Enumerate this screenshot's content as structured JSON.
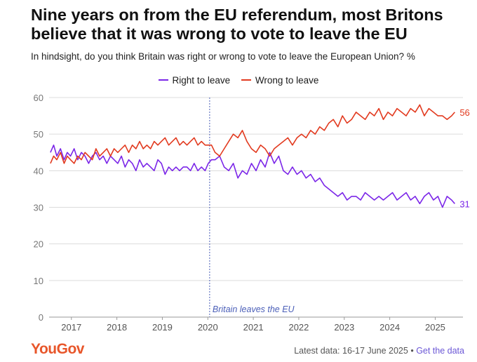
{
  "header": {
    "title": "Nine years on from the EU referendum, most Britons believe that it was wrong to vote to leave the EU",
    "subtitle": "In hindsight, do you think Britain was right or wrong to vote to leave the European Union? %"
  },
  "footer": {
    "brand": "YouGov",
    "latest": "Latest data: 16-17 June 2025",
    "separator": "•",
    "link": "Get the data"
  },
  "colors": {
    "right": "#7b26e8",
    "wrong": "#e23a1f",
    "brand": "#e8562a",
    "grid": "#dcdcdc",
    "axis": "#777777"
  },
  "chart_data": {
    "type": "line",
    "title": "Nine years on from the EU referendum, most Britons believe that it was wrong to vote to leave the EU",
    "subtitle": "In hindsight, do you think Britain was right or wrong to vote to leave the European Union? %",
    "ylim": [
      0,
      60
    ],
    "yticks": [
      0,
      10,
      20,
      30,
      40,
      50,
      60
    ],
    "xlim": [
      2016.55,
      2025.65
    ],
    "xticks": [
      "2017",
      "2018",
      "2019",
      "2020",
      "2021",
      "2022",
      "2023",
      "2024",
      "2025"
    ],
    "legend": "top-center",
    "grid": true,
    "annotation": {
      "x": 2020.08,
      "label": "Britain leaves the EU"
    },
    "series": [
      {
        "name": "Right to leave",
        "color": "#7b26e8",
        "end_label": "31",
        "x": [
          2016.58,
          2016.65,
          2016.72,
          2016.8,
          2016.88,
          2016.95,
          2017.02,
          2017.1,
          2017.18,
          2017.26,
          2017.34,
          2017.42,
          2017.5,
          2017.58,
          2017.66,
          2017.74,
          2017.82,
          2017.9,
          2017.98,
          2018.06,
          2018.14,
          2018.22,
          2018.3,
          2018.38,
          2018.46,
          2018.54,
          2018.62,
          2018.7,
          2018.78,
          2018.86,
          2018.94,
          2019.02,
          2019.1,
          2019.18,
          2019.26,
          2019.34,
          2019.42,
          2019.5,
          2019.58,
          2019.66,
          2019.74,
          2019.82,
          2019.9,
          2019.98,
          2020.05,
          2020.12,
          2020.2,
          2020.3,
          2020.4,
          2020.5,
          2020.6,
          2020.7,
          2020.8,
          2020.9,
          2021.0,
          2021.1,
          2021.2,
          2021.3,
          2021.4,
          2021.5,
          2021.6,
          2021.7,
          2021.8,
          2021.9,
          2022.0,
          2022.1,
          2022.2,
          2022.3,
          2022.4,
          2022.5,
          2022.6,
          2022.7,
          2022.8,
          2022.9,
          2023.0,
          2023.1,
          2023.2,
          2023.3,
          2023.4,
          2023.5,
          2023.6,
          2023.7,
          2023.8,
          2023.9,
          2024.0,
          2024.1,
          2024.2,
          2024.3,
          2024.4,
          2024.5,
          2024.6,
          2024.7,
          2024.8,
          2024.9,
          2025.0,
          2025.1,
          2025.2,
          2025.3,
          2025.4,
          2025.47
        ],
        "values": [
          45,
          47,
          44,
          46,
          43,
          45,
          44,
          46,
          43,
          45,
          44,
          42,
          44,
          45,
          43,
          44,
          42,
          44,
          43,
          42,
          44,
          41,
          43,
          42,
          40,
          43,
          41,
          42,
          41,
          40,
          43,
          42,
          39,
          41,
          40,
          41,
          40,
          41,
          41,
          40,
          42,
          40,
          41,
          40,
          42,
          43,
          43,
          44,
          41,
          40,
          42,
          38,
          40,
          39,
          42,
          40,
          43,
          41,
          45,
          42,
          44,
          40,
          39,
          41,
          39,
          40,
          38,
          39,
          37,
          38,
          36,
          35,
          34,
          33,
          34,
          32,
          33,
          33,
          32,
          34,
          33,
          32,
          33,
          32,
          33,
          34,
          32,
          33,
          34,
          32,
          33,
          31,
          33,
          34,
          32,
          33,
          30,
          33,
          32,
          31
        ]
      },
      {
        "name": "Wrong to leave",
        "color": "#e23a1f",
        "end_label": "56",
        "x": [
          2016.58,
          2016.65,
          2016.72,
          2016.8,
          2016.88,
          2016.95,
          2017.02,
          2017.1,
          2017.18,
          2017.26,
          2017.34,
          2017.42,
          2017.5,
          2017.58,
          2017.66,
          2017.74,
          2017.82,
          2017.9,
          2017.98,
          2018.06,
          2018.14,
          2018.22,
          2018.3,
          2018.38,
          2018.46,
          2018.54,
          2018.62,
          2018.7,
          2018.78,
          2018.86,
          2018.94,
          2019.02,
          2019.1,
          2019.18,
          2019.26,
          2019.34,
          2019.42,
          2019.5,
          2019.58,
          2019.66,
          2019.74,
          2019.82,
          2019.9,
          2019.98,
          2020.05,
          2020.12,
          2020.2,
          2020.3,
          2020.4,
          2020.5,
          2020.6,
          2020.7,
          2020.8,
          2020.9,
          2021.0,
          2021.1,
          2021.2,
          2021.3,
          2021.4,
          2021.5,
          2021.6,
          2021.7,
          2021.8,
          2021.9,
          2022.0,
          2022.1,
          2022.2,
          2022.3,
          2022.4,
          2022.5,
          2022.6,
          2022.7,
          2022.8,
          2022.9,
          2023.0,
          2023.1,
          2023.2,
          2023.3,
          2023.4,
          2023.5,
          2023.6,
          2023.7,
          2023.8,
          2023.9,
          2024.0,
          2024.1,
          2024.2,
          2024.3,
          2024.4,
          2024.5,
          2024.6,
          2024.7,
          2024.8,
          2024.9,
          2025.0,
          2025.1,
          2025.2,
          2025.3,
          2025.4,
          2025.47
        ],
        "values": [
          42,
          44,
          43,
          45,
          42,
          44,
          43,
          42,
          44,
          43,
          45,
          44,
          43,
          46,
          44,
          45,
          46,
          44,
          46,
          45,
          46,
          47,
          45,
          47,
          46,
          48,
          46,
          47,
          46,
          48,
          47,
          48,
          49,
          47,
          48,
          49,
          47,
          48,
          47,
          48,
          49,
          47,
          48,
          47,
          47,
          47,
          45,
          44,
          46,
          48,
          50,
          49,
          51,
          48,
          46,
          45,
          47,
          46,
          44,
          46,
          47,
          48,
          49,
          47,
          49,
          50,
          49,
          51,
          50,
          52,
          51,
          53,
          54,
          52,
          55,
          53,
          54,
          56,
          55,
          54,
          56,
          55,
          57,
          54,
          56,
          55,
          57,
          56,
          55,
          57,
          56,
          58,
          55,
          57,
          56,
          55,
          55,
          54,
          55,
          56
        ]
      }
    ]
  }
}
